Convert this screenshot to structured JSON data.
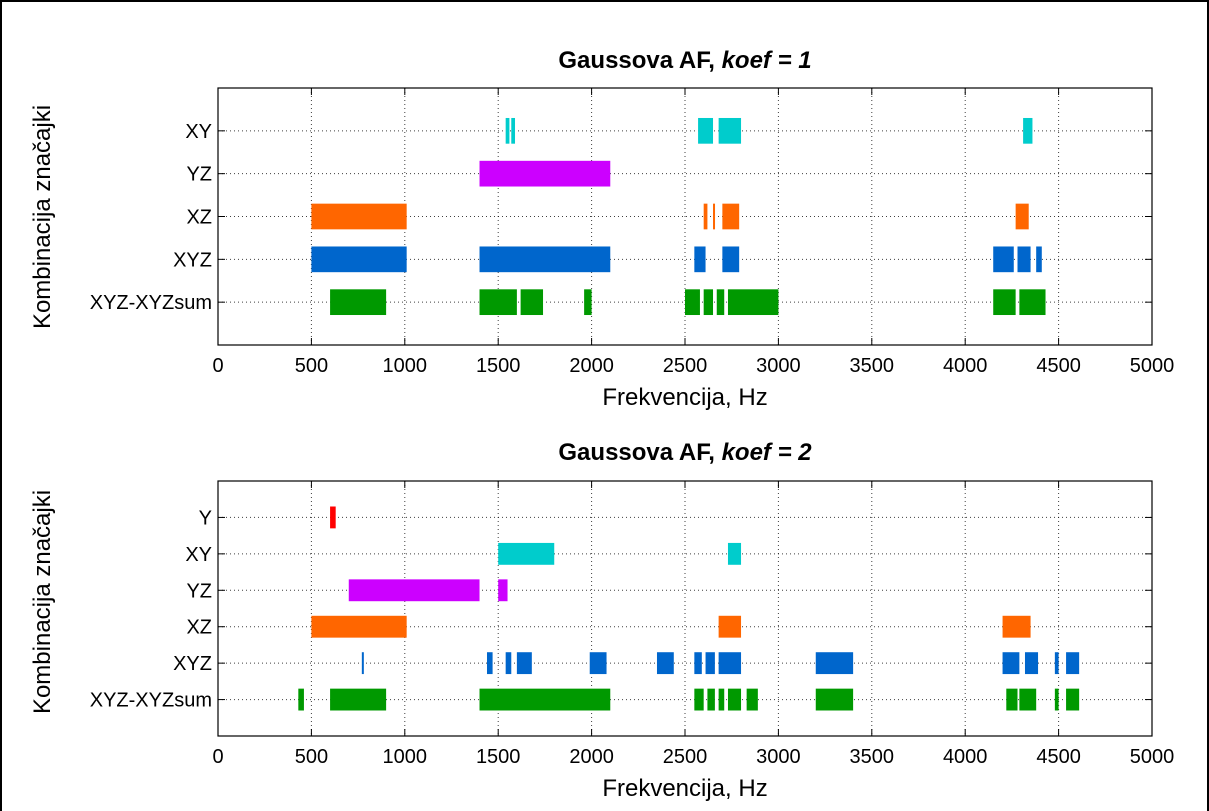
{
  "chart_data": [
    {
      "type": "bar",
      "title_prefix": "Gaussova AF, ",
      "title_suffix": "koef = 1",
      "xlabel": "Frekvencija, Hz",
      "ylabel": "Kombinacija značajki",
      "xlim": [
        0,
        5000
      ],
      "xticks": [
        0,
        500,
        1000,
        1500,
        2000,
        2500,
        3000,
        3500,
        4000,
        4500,
        5000
      ],
      "grid": true,
      "categories": [
        "XY",
        "YZ",
        "XZ",
        "XYZ",
        "XYZ-XYZsum"
      ],
      "series": [
        {
          "category": "XY",
          "color": "#00cccc",
          "intervals": [
            [
              1540,
              1560
            ],
            [
              1570,
              1590
            ],
            [
              2570,
              2650
            ],
            [
              2680,
              2800
            ],
            [
              4310,
              4360
            ]
          ]
        },
        {
          "category": "YZ",
          "color": "#cc00ff",
          "intervals": [
            [
              1400,
              2100
            ]
          ]
        },
        {
          "category": "XZ",
          "color": "#ff6600",
          "intervals": [
            [
              500,
              1010
            ],
            [
              2600,
              2620
            ],
            [
              2650,
              2660
            ],
            [
              2700,
              2790
            ],
            [
              4270,
              4340
            ]
          ]
        },
        {
          "category": "XYZ",
          "color": "#0066cc",
          "intervals": [
            [
              500,
              1010
            ],
            [
              1400,
              2100
            ],
            [
              2550,
              2610
            ],
            [
              2700,
              2790
            ],
            [
              4150,
              4260
            ],
            [
              4280,
              4350
            ],
            [
              4380,
              4410
            ]
          ]
        },
        {
          "category": "XYZ-XYZsum",
          "color": "#009900",
          "intervals": [
            [
              600,
              900
            ],
            [
              1400,
              1600
            ],
            [
              1620,
              1740
            ],
            [
              1960,
              2000
            ],
            [
              2500,
              2580
            ],
            [
              2600,
              2650
            ],
            [
              2670,
              2710
            ],
            [
              2730,
              3000
            ],
            [
              4150,
              4270
            ],
            [
              4290,
              4430
            ]
          ]
        }
      ]
    },
    {
      "type": "bar",
      "title_prefix": "Gaussova AF, ",
      "title_suffix": "koef = 2",
      "xlabel": "Frekvencija, Hz",
      "ylabel": "Kombinacija značajki",
      "xlim": [
        0,
        5000
      ],
      "xticks": [
        0,
        500,
        1000,
        1500,
        2000,
        2500,
        3000,
        3500,
        4000,
        4500,
        5000
      ],
      "grid": true,
      "categories": [
        "Y",
        "XY",
        "YZ",
        "XZ",
        "XYZ",
        "XYZ-XYZsum"
      ],
      "series": [
        {
          "category": "Y",
          "color": "#ff0000",
          "intervals": [
            [
              600,
              630
            ]
          ]
        },
        {
          "category": "XY",
          "color": "#00cccc",
          "intervals": [
            [
              1500,
              1800
            ],
            [
              2730,
              2800
            ]
          ]
        },
        {
          "category": "YZ",
          "color": "#cc00ff",
          "intervals": [
            [
              700,
              1400
            ],
            [
              1500,
              1550
            ]
          ]
        },
        {
          "category": "XZ",
          "color": "#ff6600",
          "intervals": [
            [
              500,
              1010
            ],
            [
              2680,
              2800
            ],
            [
              4200,
              4350
            ]
          ]
        },
        {
          "category": "XYZ",
          "color": "#0066cc",
          "intervals": [
            [
              770,
              780
            ],
            [
              1440,
              1470
            ],
            [
              1540,
              1570
            ],
            [
              1600,
              1680
            ],
            [
              1990,
              2080
            ],
            [
              2350,
              2440
            ],
            [
              2550,
              2590
            ],
            [
              2610,
              2660
            ],
            [
              2680,
              2800
            ],
            [
              3200,
              3400
            ],
            [
              4200,
              4290
            ],
            [
              4320,
              4390
            ],
            [
              4480,
              4500
            ],
            [
              4540,
              4610
            ]
          ]
        },
        {
          "category": "XYZ-XYZsum",
          "color": "#009900",
          "intervals": [
            [
              430,
              460
            ],
            [
              600,
              900
            ],
            [
              1400,
              2100
            ],
            [
              2550,
              2600
            ],
            [
              2620,
              2660
            ],
            [
              2680,
              2710
            ],
            [
              2730,
              2800
            ],
            [
              2830,
              2890
            ],
            [
              3200,
              3400
            ],
            [
              4220,
              4280
            ],
            [
              4290,
              4380
            ],
            [
              4480,
              4500
            ],
            [
              4540,
              4610
            ]
          ]
        }
      ]
    }
  ]
}
